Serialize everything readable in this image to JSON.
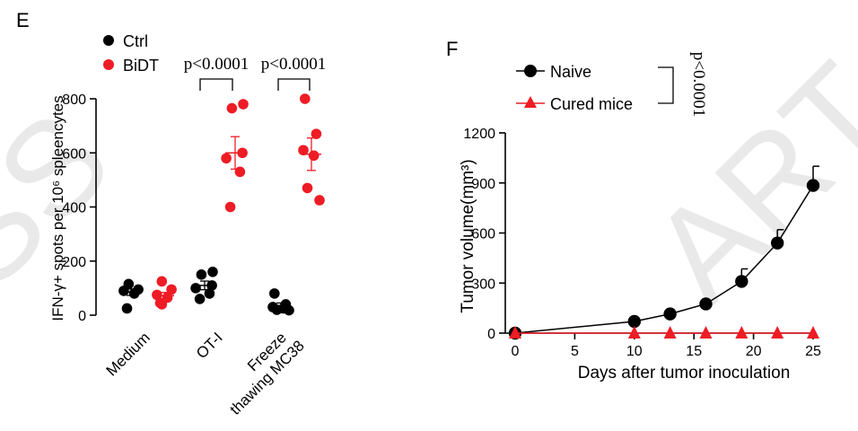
{
  "watermark": {
    "text_left": "SS",
    "text_right": "ART",
    "color": "#e9e9e9"
  },
  "chart_data": [
    {
      "panel": "E",
      "type": "scatter",
      "ylabel": "IFN-γ+ spots per 10⁶ spleencytes",
      "ylim": [
        0,
        800
      ],
      "yticks": [
        "0",
        "200",
        "400",
        "600",
        "800"
      ],
      "categories": [
        "Medium",
        "OT-I",
        "Freeze thawing MC38"
      ],
      "category_lines": [
        [
          "Medium"
        ],
        [
          "OT-I"
        ],
        [
          "Freeze",
          "thawing MC38"
        ]
      ],
      "legend": {
        "position": "top-left",
        "entries": [
          "Ctrl",
          "BiDT"
        ]
      },
      "series": [
        {
          "name": "Ctrl",
          "color": "#000000",
          "points": [
            [
              115,
              95,
              90,
              80,
              25
            ],
            [
              160,
              150,
              110,
              100,
              80,
              60
            ],
            [
              80,
              40,
              30,
              25,
              20,
              18
            ]
          ],
          "mean": [
            85,
            110,
            35
          ],
          "sem": [
            12,
            16,
            10
          ]
        },
        {
          "name": "BiDT",
          "color": "#ee1c25",
          "points": [
            [
              125,
              95,
              75,
              65,
              45,
              40
            ],
            [
              780,
              765,
              600,
              580,
              530,
              400
            ],
            [
              800,
              670,
              610,
              590,
              470,
              425
            ]
          ],
          "mean": [
            72,
            600,
            595
          ],
          "sem": [
            12,
            60,
            60
          ]
        }
      ],
      "annotations": [
        {
          "text": "p<0.0001",
          "category": 1
        },
        {
          "text": "p<0.0001",
          "category": 2
        }
      ]
    },
    {
      "panel": "F",
      "type": "line",
      "xlabel": "Days after tumor inoculation",
      "ylabel": "Tumor volume(mm³)",
      "xlim": [
        0,
        25
      ],
      "ylim": [
        0,
        1200
      ],
      "xticks": [
        "0",
        "5",
        "10",
        "15",
        "20",
        "25"
      ],
      "yticks": [
        "0",
        "300",
        "600",
        "900",
        "1200"
      ],
      "legend": {
        "position": "top-left",
        "entries": [
          "Naive",
          "Cured mice"
        ]
      },
      "series": [
        {
          "name": "Naive",
          "color": "#000000",
          "marker": "circle",
          "x": [
            0,
            10,
            13,
            16,
            19,
            22,
            25
          ],
          "y": [
            0,
            70,
            115,
            175,
            310,
            540,
            885
          ],
          "err": [
            0,
            0,
            0,
            0,
            75,
            80,
            115
          ]
        },
        {
          "name": "Cured mice",
          "color": "#ee1c25",
          "marker": "triangle",
          "x": [
            0,
            10,
            13,
            16,
            19,
            22,
            25
          ],
          "y": [
            0,
            0,
            0,
            0,
            0,
            0,
            0
          ],
          "err": [
            0,
            0,
            0,
            0,
            0,
            0,
            0
          ]
        }
      ],
      "annotations": [
        {
          "text": "p<0.0001"
        }
      ]
    }
  ]
}
